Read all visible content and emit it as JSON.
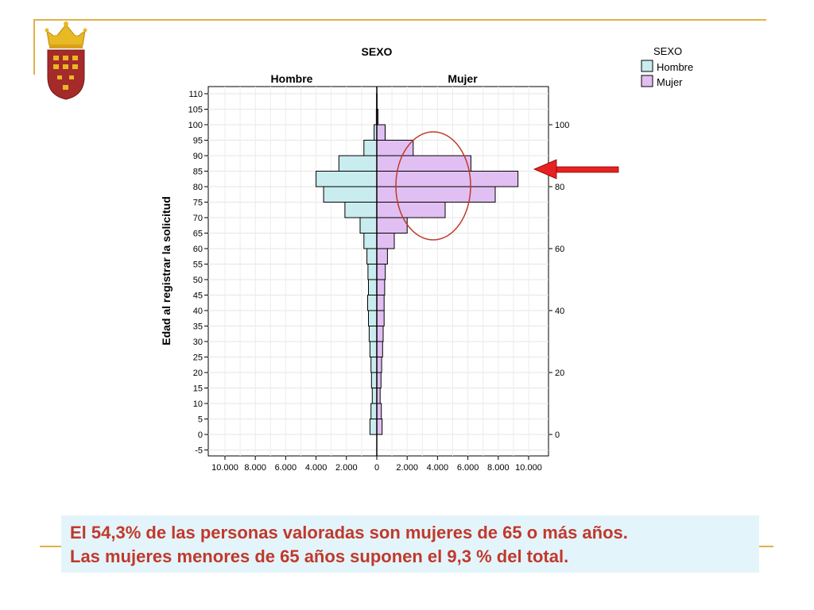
{
  "slide": {
    "caption_line1": "El 54,3% de las personas valoradas son mujeres de 65 o más años.",
    "caption_line2": "Las mujeres menores de 65 años suponen el 9,3 % del total.",
    "accent_color": "#e0b24a",
    "caption_color": "#c0392b",
    "caption_bg": "#e4f4fb",
    "logo": "region-of-murcia-coat-of-arms"
  },
  "chart_data": {
    "type": "bar",
    "orientation": "horizontal-population-pyramid",
    "title": "SEXO",
    "panels": [
      "Hombre",
      "Mujer"
    ],
    "ylabel": "Edad al registrar la solicitud",
    "y_ticks_left": [
      "110",
      "105",
      "100",
      "95",
      "90",
      "85",
      "80",
      "75",
      "70",
      "65",
      "60",
      "55",
      "50",
      "45",
      "40",
      "35",
      "30",
      "25",
      "20",
      "15",
      "10",
      "5",
      "0",
      "-5"
    ],
    "y_ticks_right": [
      "100",
      "80",
      "60",
      "40",
      "20",
      "0"
    ],
    "x_ticks_left": [
      "10.000",
      "8.000",
      "6.000",
      "4.000",
      "2.000"
    ],
    "x_tick_center": "0",
    "x_ticks_right": [
      "2.000",
      "4.000",
      "6.000",
      "8.000",
      "10.000"
    ],
    "xlim": [
      0,
      10000
    ],
    "ylim": [
      -5,
      110
    ],
    "legend": {
      "title": "SEXO",
      "position": "top-right",
      "items": [
        "Hombre",
        "Mujer"
      ]
    },
    "categories": [
      "0-5",
      "5-10",
      "10-15",
      "15-20",
      "20-25",
      "25-30",
      "30-35",
      "35-40",
      "40-45",
      "45-50",
      "50-55",
      "55-60",
      "60-65",
      "65-70",
      "70-75",
      "75-80",
      "80-85",
      "85-90",
      "90-95",
      "95-100",
      "100-105",
      "105-110"
    ],
    "series": [
      {
        "name": "Hombre",
        "color": "#c9ecee",
        "values": [
          450,
          380,
          300,
          350,
          380,
          450,
          500,
          550,
          600,
          550,
          580,
          650,
          850,
          1100,
          2100,
          3500,
          4000,
          2500,
          850,
          180,
          30,
          10
        ]
      },
      {
        "name": "Mujer",
        "color": "#e1bff2",
        "values": [
          350,
          300,
          220,
          280,
          320,
          380,
          420,
          480,
          480,
          520,
          560,
          700,
          1150,
          2000,
          4500,
          7800,
          9300,
          6200,
          2400,
          550,
          80,
          20
        ]
      }
    ],
    "annotations": [
      "red-ellipse-highlight",
      "red-arrow"
    ]
  }
}
